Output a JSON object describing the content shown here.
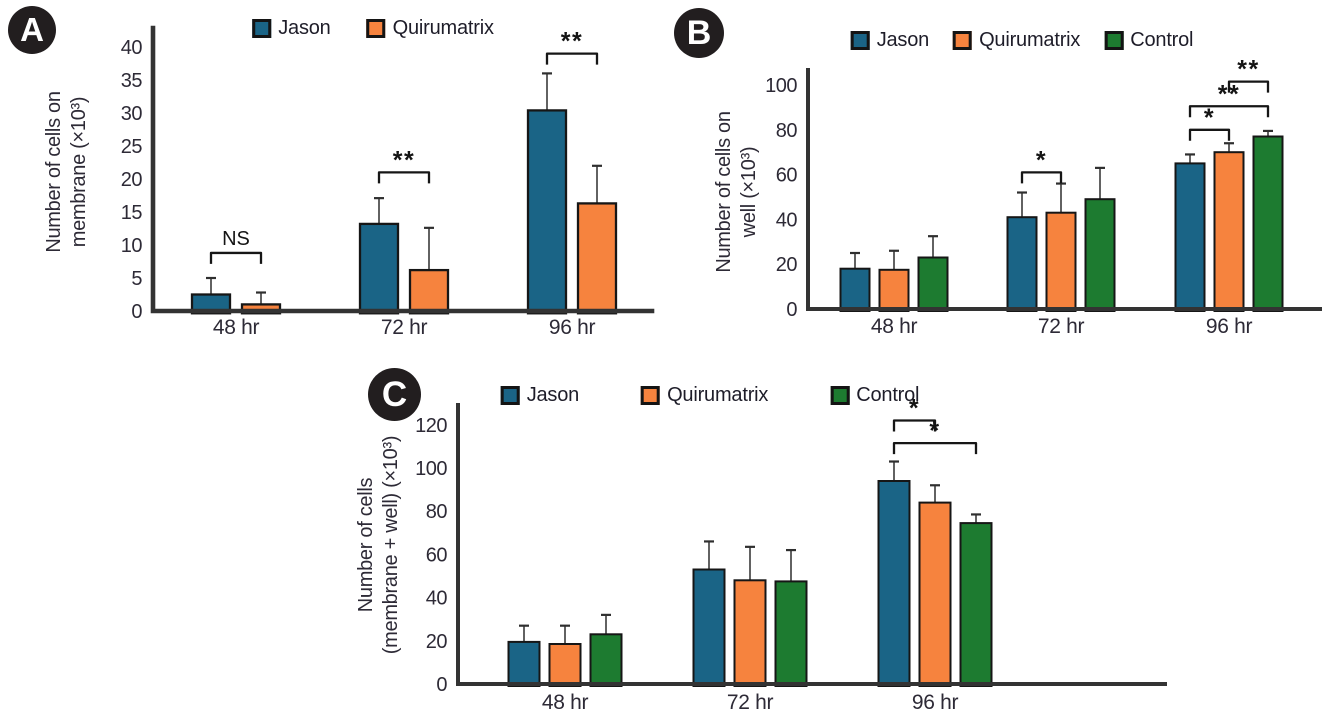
{
  "colors": {
    "jason": "#1a6486",
    "quirumatrix": "#f6833e",
    "control": "#1d7b30",
    "axis": "#333333",
    "ink": "#2d2a36",
    "bar_border": "#161616",
    "error": "#474747",
    "badge_bg": "#221e1f"
  },
  "chart_data": [
    {
      "id": "A",
      "type": "bar",
      "ylabel_lines": [
        "Number of cells on",
        "membrane (×10³)"
      ],
      "categories": [
        "48 hr",
        "72 hr",
        "96 hr"
      ],
      "ylim": [
        0,
        40
      ],
      "yticks": [
        0,
        5,
        10,
        15,
        20,
        25,
        30,
        35,
        40
      ],
      "grid": false,
      "legend_position": "top",
      "series": [
        {
          "name": "Jason",
          "color_key": "jason",
          "values": [
            2.5,
            13.2,
            30.4
          ],
          "errors_plus": [
            2.5,
            3.9,
            5.6
          ]
        },
        {
          "name": "Quirumatrix",
          "color_key": "quirumatrix",
          "values": [
            1.0,
            6.2,
            16.3
          ],
          "errors_plus": [
            1.8,
            6.4,
            5.7
          ]
        }
      ],
      "significance": [
        {
          "label": "NS",
          "group": 0,
          "from": 0,
          "to": 1,
          "y": 8.8
        },
        {
          "label": "**",
          "group": 1,
          "from": 0,
          "to": 1,
          "y": 21
        },
        {
          "label": "**",
          "group": 2,
          "from": 0,
          "to": 1,
          "y": 39
        }
      ]
    },
    {
      "id": "B",
      "type": "bar",
      "ylabel_lines": [
        "Number of cells on",
        "well (×10³)"
      ],
      "categories": [
        "48 hr",
        "72 hr",
        "96 hr"
      ],
      "ylim": [
        0,
        100
      ],
      "yticks": [
        0,
        20,
        40,
        60,
        80,
        100
      ],
      "grid": false,
      "legend_position": "top",
      "series": [
        {
          "name": "Jason",
          "color_key": "jason",
          "values": [
            18,
            41,
            65
          ],
          "errors_plus": [
            7,
            11,
            4
          ]
        },
        {
          "name": "Quirumatrix",
          "color_key": "quirumatrix",
          "values": [
            17.5,
            43,
            70
          ],
          "errors_plus": [
            8.5,
            13,
            4
          ]
        },
        {
          "name": "Control",
          "color_key": "control",
          "values": [
            23,
            49,
            77
          ],
          "errors_plus": [
            9.5,
            14,
            2.5
          ]
        }
      ],
      "significance": [
        {
          "label": "*",
          "group": 1,
          "from": 0,
          "to": 1,
          "y": 61
        },
        {
          "label": "*",
          "group": 2,
          "from": 0,
          "to": 1,
          "y": 80
        },
        {
          "label": "**",
          "group": 2,
          "from": 0,
          "to": 2,
          "y": 90.5
        },
        {
          "label": "**",
          "group": 2,
          "from": 1,
          "to": 2,
          "y": 101.5
        }
      ]
    },
    {
      "id": "C",
      "type": "bar",
      "ylabel_lines": [
        "Number of cells",
        "(membrane + well) (×10³)"
      ],
      "categories": [
        "48 hr",
        "72 hr",
        "96 hr"
      ],
      "ylim": [
        0,
        120
      ],
      "yticks": [
        0,
        20,
        40,
        60,
        80,
        100,
        120
      ],
      "grid": false,
      "legend_position": "top",
      "series": [
        {
          "name": "Jason",
          "color_key": "jason",
          "values": [
            19.5,
            53,
            94
          ],
          "errors_plus": [
            7.5,
            13,
            9
          ]
        },
        {
          "name": "Quirumatrix",
          "color_key": "quirumatrix",
          "values": [
            18.5,
            48,
            84
          ],
          "errors_plus": [
            8.5,
            15.5,
            8
          ]
        },
        {
          "name": "Control",
          "color_key": "control",
          "values": [
            23,
            47.5,
            74.5
          ],
          "errors_plus": [
            9,
            14.5,
            4
          ]
        }
      ],
      "significance": [
        {
          "label": "*",
          "group": 2,
          "from": 0,
          "to": 1,
          "y": 122
        },
        {
          "label": "*",
          "group": 2,
          "from": 0,
          "to": 2,
          "y": 111.5
        }
      ]
    }
  ]
}
